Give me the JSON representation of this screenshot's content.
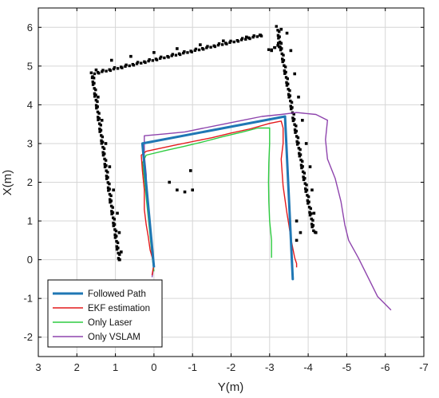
{
  "chart_data": {
    "type": "line",
    "xlabel": "Y(m)",
    "ylabel": "X(m)",
    "xlim": [
      3,
      -7
    ],
    "ylim": [
      -2.5,
      6.5
    ],
    "x_axis_reversed": true,
    "x_ticks": [
      3,
      2,
      1,
      0,
      -1,
      -2,
      -3,
      -4,
      -5,
      -6,
      -7
    ],
    "y_ticks": [
      -2,
      -1,
      0,
      1,
      2,
      3,
      4,
      5,
      6
    ],
    "x_tick_labels": [
      "3",
      "2",
      "1",
      "0",
      "-1",
      "-2",
      "-3",
      "-4",
      "-5",
      "-6",
      "-7"
    ],
    "y_tick_labels": [
      "-2",
      "-1",
      "0",
      "1",
      "2",
      "3",
      "4",
      "5",
      "6"
    ],
    "grid": true,
    "legend_position": "bottom-left",
    "series": [
      {
        "name": "Followed Path",
        "color": "#1f77b4",
        "points": [
          [
            0.3,
            3.0
          ],
          [
            -3.4,
            3.7
          ],
          [
            -3.6,
            -0.5
          ],
          [
            -3.4,
            3.7
          ],
          [
            0.3,
            3.0
          ],
          [
            0.0,
            -0.2
          ]
        ]
      },
      {
        "name": "EKF estimation",
        "color": "#e41a1c",
        "points": [
          [
            0.05,
            -0.4
          ],
          [
            0.0,
            -0.1
          ],
          [
            0.1,
            0.25
          ],
          [
            0.15,
            0.6
          ],
          [
            0.2,
            0.9
          ],
          [
            0.25,
            1.3
          ],
          [
            0.25,
            1.8
          ],
          [
            0.3,
            2.3
          ],
          [
            0.33,
            2.7
          ],
          [
            0.2,
            2.8
          ],
          [
            -0.5,
            2.95
          ],
          [
            -1.0,
            3.05
          ],
          [
            -1.5,
            3.15
          ],
          [
            -2.0,
            3.27
          ],
          [
            -2.5,
            3.38
          ],
          [
            -3.0,
            3.52
          ],
          [
            -3.3,
            3.58
          ],
          [
            -3.35,
            3.4
          ],
          [
            -3.35,
            3.0
          ],
          [
            -3.3,
            2.6
          ],
          [
            -3.32,
            2.3
          ],
          [
            -3.35,
            1.9
          ],
          [
            -3.4,
            1.55
          ],
          [
            -3.45,
            1.2
          ],
          [
            -3.5,
            0.9
          ],
          [
            -3.55,
            0.55
          ],
          [
            -3.6,
            0.3
          ],
          [
            -3.65,
            0.05
          ],
          [
            -3.7,
            -0.1
          ],
          [
            -3.7,
            -0.2
          ]
        ]
      },
      {
        "name": "Only Laser",
        "color": "#2ecc40",
        "points": [
          [
            0.0,
            -0.3
          ],
          [
            0.05,
            0.1
          ],
          [
            0.1,
            0.6
          ],
          [
            0.15,
            1.1
          ],
          [
            0.2,
            1.6
          ],
          [
            0.25,
            2.1
          ],
          [
            0.3,
            2.5
          ],
          [
            0.2,
            2.7
          ],
          [
            -0.3,
            2.82
          ],
          [
            -0.8,
            2.93
          ],
          [
            -1.3,
            3.05
          ],
          [
            -1.8,
            3.18
          ],
          [
            -2.3,
            3.3
          ],
          [
            -2.7,
            3.4
          ],
          [
            -3.0,
            3.4
          ],
          [
            -3.0,
            3.0
          ],
          [
            -2.98,
            2.5
          ],
          [
            -2.97,
            2.0
          ],
          [
            -2.98,
            1.5
          ],
          [
            -3.0,
            1.0
          ],
          [
            -3.05,
            0.5
          ],
          [
            -3.05,
            0.05
          ]
        ]
      },
      {
        "name": "Only VSLAM",
        "color": "#8e44ad",
        "points": [
          [
            0.05,
            -0.45
          ],
          [
            0.0,
            -0.15
          ],
          [
            0.05,
            0.25
          ],
          [
            0.1,
            0.7
          ],
          [
            0.15,
            1.2
          ],
          [
            0.2,
            1.7
          ],
          [
            0.2,
            2.2
          ],
          [
            0.25,
            2.7
          ],
          [
            0.25,
            3.2
          ],
          [
            -0.3,
            3.25
          ],
          [
            -0.8,
            3.3
          ],
          [
            -1.3,
            3.4
          ],
          [
            -1.8,
            3.5
          ],
          [
            -2.3,
            3.6
          ],
          [
            -2.8,
            3.7
          ],
          [
            -3.3,
            3.75
          ],
          [
            -3.7,
            3.8
          ],
          [
            -4.2,
            3.75
          ],
          [
            -4.5,
            3.6
          ],
          [
            -4.45,
            3.1
          ],
          [
            -4.5,
            2.6
          ],
          [
            -4.7,
            2.1
          ],
          [
            -4.85,
            1.5
          ],
          [
            -4.95,
            0.9
          ],
          [
            -5.05,
            0.5
          ],
          [
            -5.3,
            0.05
          ],
          [
            -5.6,
            -0.55
          ],
          [
            -5.8,
            -0.95
          ],
          [
            -6.15,
            -1.3
          ]
        ]
      }
    ],
    "map_points": [
      [
        1.5,
        4.9
      ],
      [
        1.1,
        5.15
      ],
      [
        0.6,
        5.25
      ],
      [
        0.0,
        5.35
      ],
      [
        -0.6,
        5.45
      ],
      [
        -1.2,
        5.55
      ],
      [
        -1.8,
        5.65
      ],
      [
        -2.4,
        5.75
      ],
      [
        -2.75,
        5.8
      ],
      [
        -3.3,
        5.95
      ],
      [
        -3.45,
        5.85
      ],
      [
        -3.55,
        5.4
      ],
      [
        -3.65,
        4.8
      ],
      [
        -3.75,
        4.2
      ],
      [
        -3.85,
        3.6
      ],
      [
        -3.95,
        3.0
      ],
      [
        -4.05,
        2.4
      ],
      [
        -4.1,
        1.8
      ],
      [
        -4.15,
        1.2
      ],
      [
        -4.2,
        0.7
      ],
      [
        -3.05,
        5.4
      ],
      [
        -3.25,
        5.5
      ],
      [
        1.6,
        4.7
      ],
      [
        1.45,
        4.2
      ],
      [
        1.35,
        3.6
      ],
      [
        1.25,
        3.0
      ],
      [
        1.15,
        2.4
      ],
      [
        1.05,
        1.8
      ],
      [
        0.95,
        1.2
      ],
      [
        0.9,
        0.7
      ],
      [
        0.85,
        0.2
      ],
      [
        0.9,
        0.0
      ],
      [
        -0.4,
        2.0
      ],
      [
        -0.6,
        1.8
      ],
      [
        -0.8,
        1.75
      ],
      [
        -1.0,
        1.8
      ],
      [
        -0.95,
        2.3
      ],
      [
        -3.7,
        1.0
      ],
      [
        -3.8,
        0.7
      ],
      [
        -3.7,
        0.5
      ]
    ],
    "map_color": "#000000",
    "map_walls": [
      [
        [
          1.6,
          4.8
        ],
        [
          -2.8,
          5.8
        ]
      ],
      [
        [
          1.6,
          4.8
        ],
        [
          0.9,
          0.0
        ]
      ],
      [
        [
          -3.2,
          6.0
        ],
        [
          -4.15,
          0.7
        ]
      ],
      [
        [
          -3.0,
          5.4
        ],
        [
          -3.3,
          5.6
        ]
      ]
    ]
  },
  "legend": {
    "items": [
      {
        "label": "Followed Path",
        "color": "#1f77b4"
      },
      {
        "label": "EKF estimation",
        "color": "#e41a1c"
      },
      {
        "label": "Only Laser",
        "color": "#2ecc40"
      },
      {
        "label": "Only VSLAM",
        "color": "#8e44ad"
      }
    ]
  }
}
